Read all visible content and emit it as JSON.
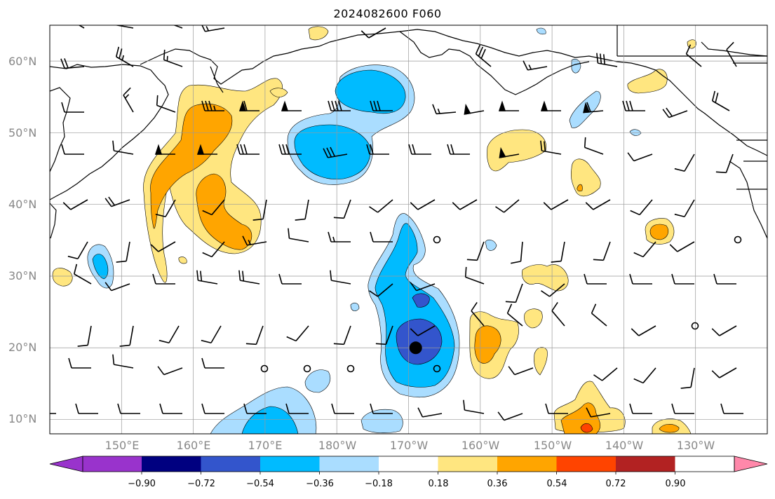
{
  "title": "2024082600 F060",
  "y_ticks": [
    "60°N",
    "50°N",
    "40°N",
    "30°N",
    "20°N",
    "10°N"
  ],
  "x_ticks": [
    "150°E",
    "160°E",
    "170°E",
    "180°W",
    "170°W",
    "160°W",
    "150°W",
    "140°W",
    "130°W"
  ],
  "colorbar": {
    "levels": [
      "−0.90",
      "−0.72",
      "−0.54",
      "−0.36",
      "−0.18",
      "0.18",
      "0.36",
      "0.54",
      "0.72",
      "0.90"
    ],
    "colors": [
      "#9933cc",
      "#000080",
      "#3355cc",
      "#00bbff",
      "#aaddff",
      "#ffffff",
      "#ffe680",
      "#ffa500",
      "#ff4400",
      "#b22222",
      "#ff88aa"
    ]
  },
  "map": {
    "extent": {
      "lon": [
        140,
        240
      ],
      "lat": [
        8,
        65
      ]
    },
    "storm_center": {
      "lon": 191,
      "lat": 20
    },
    "fills": {
      "light_blue": "#aaddff",
      "blue": "#00bbff",
      "dark_blue": "#3355cc",
      "light_yellow": "#ffe680",
      "orange": "#ffa500",
      "red_orange": "#ff4400"
    }
  }
}
